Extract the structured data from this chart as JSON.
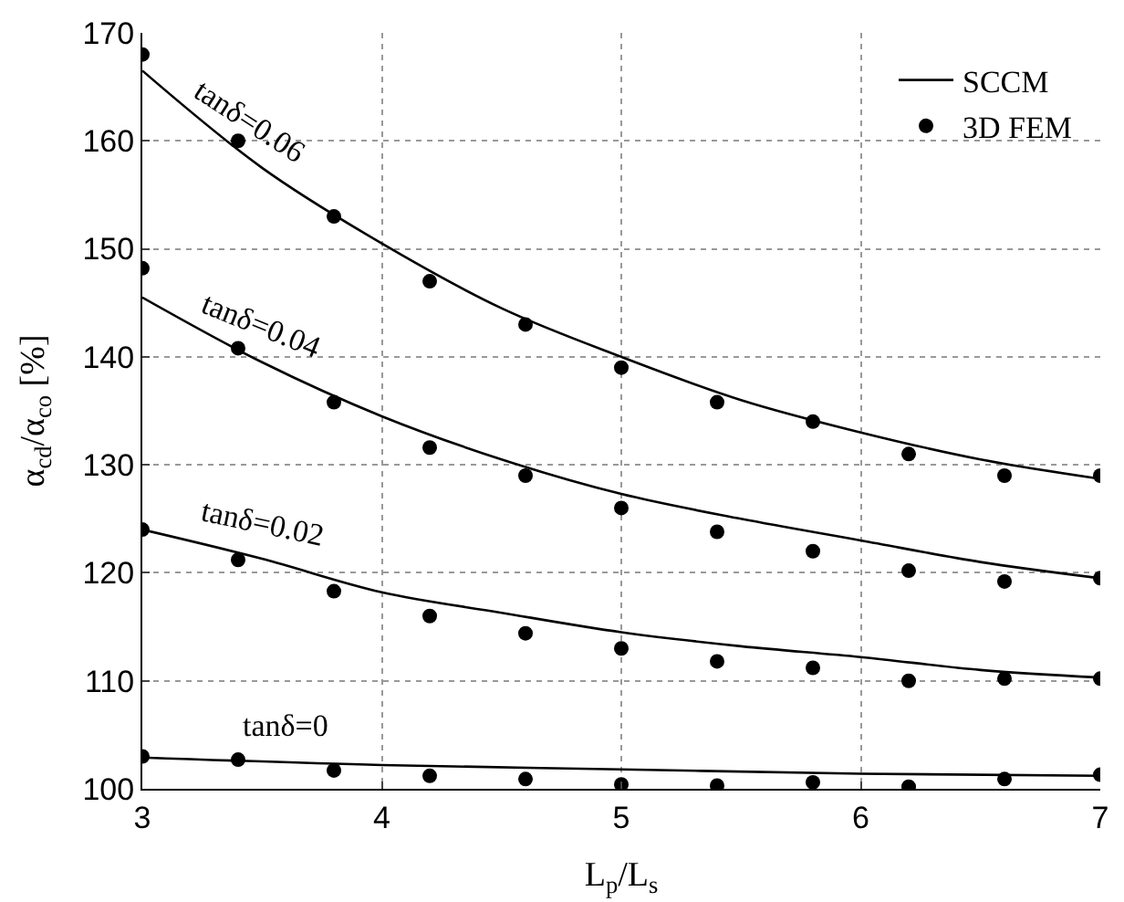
{
  "chart_data": {
    "type": "line",
    "xlabel": "L$_{p}$/L$_{s}$",
    "ylabel": "α$_{cd}$/α$_{co}$ [%]",
    "xlim": [
      3,
      7
    ],
    "xticks": [
      3,
      4,
      5,
      6,
      7
    ],
    "ylim": [
      100,
      170
    ],
    "yticks": [
      100,
      110,
      120,
      130,
      140,
      150,
      160,
      170
    ],
    "grid": true,
    "legend": "top right",
    "series": [
      {
        "name": "SCCM",
        "color": "#000000",
        "x": [
          3,
          3.5,
          4,
          4.5,
          5,
          5.5,
          6,
          6.5,
          7
        ],
        "values": [
          166.5,
          157.5,
          150.5,
          144.5,
          140,
          136,
          133,
          130.5,
          128.7
        ]
      },
      {
        "color": "#000000",
        "x": [
          3,
          3.5,
          4,
          4.5,
          5,
          5.5,
          6,
          6.5,
          7
        ],
        "values": [
          145.5,
          139.5,
          134.5,
          130.5,
          127.3,
          125,
          123,
          121,
          119.5
        ]
      },
      {
        "color": "#000000",
        "x": [
          3,
          3.5,
          4,
          4.5,
          5,
          5.5,
          6,
          6.5,
          7
        ],
        "values": [
          124,
          121.3,
          118.2,
          116.3,
          114.5,
          113.2,
          112.2,
          111,
          110.3
        ]
      },
      {
        "color": "#000000",
        "x": [
          3,
          4,
          5,
          6,
          7
        ],
        "values": [
          102.9,
          102.2,
          101.8,
          101.4,
          101.2
        ]
      },
      {
        "name": "3D FEM",
        "type": "scatter",
        "marker": "circle",
        "color": "#000000",
        "x": [
          3,
          3.4,
          3.8,
          4.2,
          4.6,
          5,
          5.4,
          5.8,
          6.2,
          6.6,
          7
        ],
        "values": [
          168,
          160,
          153,
          147,
          143,
          139,
          135.8,
          134,
          131,
          129,
          129
        ]
      },
      {
        "type": "scatter",
        "marker": "circle",
        "color": "#000000",
        "x": [
          3,
          3.4,
          3.8,
          4.2,
          4.6,
          5,
          5.4,
          5.8,
          6.2,
          6.6,
          7
        ],
        "values": [
          148.2,
          140.8,
          135.8,
          131.6,
          129,
          126,
          123.8,
          122,
          120.2,
          119.2,
          119.5
        ]
      },
      {
        "type": "scatter",
        "marker": "circle",
        "color": "#000000",
        "x": [
          3,
          3.4,
          3.8,
          4.2,
          4.6,
          5,
          5.4,
          5.8,
          6.2,
          6.6,
          7
        ],
        "values": [
          124,
          121.2,
          118.3,
          116,
          114.4,
          113,
          111.8,
          111.2,
          110,
          110.2,
          110.2
        ]
      },
      {
        "type": "scatter",
        "marker": "circle",
        "color": "#000000",
        "x": [
          3,
          3.4,
          3.8,
          4.2,
          4.6,
          5,
          5.4,
          5.8,
          6.2,
          6.6,
          7
        ],
        "values": [
          103,
          102.7,
          101.7,
          101.2,
          100.9,
          100.4,
          100.3,
          100.6,
          100.2,
          100.9,
          101.3
        ]
      }
    ],
    "annotations": [
      {
        "text": "tanδ=0.06",
        "x": 3.45,
        "y": 158.5
      },
      {
        "text": "tanδ=0.04",
        "x": 3.5,
        "y": 139.5
      },
      {
        "text": "tanδ=0.02",
        "x": 3.5,
        "y": 121.3
      },
      {
        "text": "tanδ=0",
        "x": 3.6,
        "y": 102.5
      }
    ]
  }
}
